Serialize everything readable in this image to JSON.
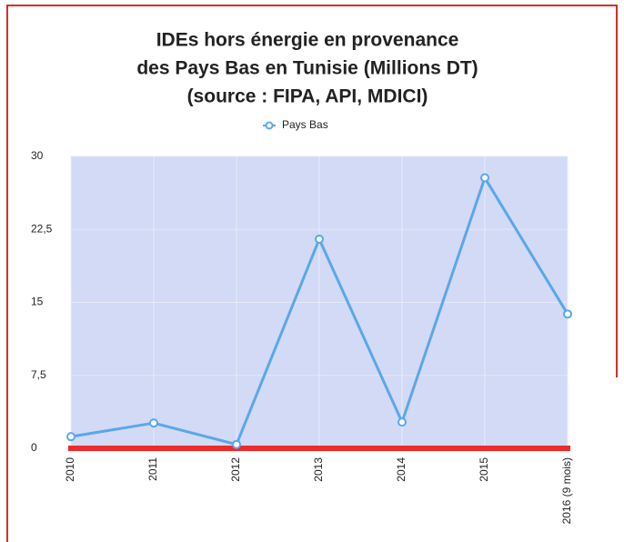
{
  "chart_data": {
    "type": "line",
    "title": [
      "IDEs hors énergie en provenance",
      "des Pays Bas en Tunisie (Millions DT)",
      "(source : FIPA, API, MDICI)"
    ],
    "categories": [
      "2010",
      "2011",
      "2012",
      "2013",
      "2014",
      "2015",
      "2016 (9 mois)"
    ],
    "series": [
      {
        "name": "Pays Bas",
        "color": "#5aa7ea",
        "values": [
          1.2,
          2.6,
          0.4,
          21.5,
          2.7,
          27.8,
          13.8
        ]
      }
    ],
    "ylim": [
      0,
      30
    ],
    "yticks": [
      0,
      {
        "value": 7.5,
        "label": "7,5"
      },
      15,
      {
        "value": 22.5,
        "label": "22,5"
      },
      30
    ],
    "grid": true,
    "legend": "top"
  }
}
